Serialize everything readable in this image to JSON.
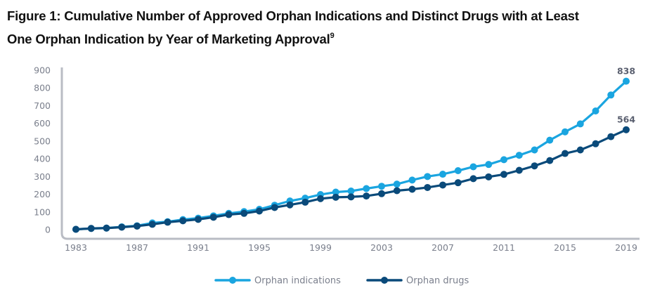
{
  "figure": {
    "title_line1": "Figure 1: Cumulative Number of Approved Orphan Indications and Distinct Drugs with at Least",
    "title_line2": "One Orphan Indication by Year of Marketing Approval",
    "footnote_marker": "9"
  },
  "chart_data": {
    "type": "line",
    "title": "Cumulative Number of Approved Orphan Indications and Distinct Drugs with at Least One Orphan Indication by Year of Marketing Approval",
    "xlabel": "",
    "ylabel": "",
    "x": [
      1983,
      1984,
      1985,
      1986,
      1987,
      1988,
      1989,
      1990,
      1991,
      1992,
      1993,
      1994,
      1995,
      1996,
      1997,
      1998,
      1999,
      2000,
      2001,
      2002,
      2003,
      2004,
      2005,
      2006,
      2007,
      2008,
      2009,
      2010,
      2011,
      2012,
      2013,
      2014,
      2015,
      2016,
      2017,
      2018,
      2019
    ],
    "xlim": [
      1983,
      2019
    ],
    "ylim": [
      0,
      900
    ],
    "x_ticks": [
      "1983",
      "1987",
      "1991",
      "1995",
      "1999",
      "2003",
      "2007",
      "2011",
      "2015",
      "2019"
    ],
    "y_ticks": [
      "0",
      "100",
      "200",
      "300",
      "400",
      "500",
      "600",
      "700",
      "800",
      "900"
    ],
    "grid": false,
    "legend_position": "bottom",
    "series": [
      {
        "name": "Orphan indications",
        "color": "#1aa5e0",
        "values": [
          2,
          7,
          9,
          16,
          22,
          38,
          45,
          57,
          65,
          78,
          92,
          102,
          115,
          138,
          162,
          178,
          198,
          212,
          218,
          232,
          245,
          257,
          280,
          300,
          313,
          333,
          355,
          368,
          395,
          420,
          450,
          505,
          552,
          597,
          670,
          760,
          838
        ],
        "end_label": "838"
      },
      {
        "name": "Orphan drugs",
        "color": "#0a4a7a",
        "values": [
          2,
          7,
          9,
          14,
          20,
          30,
          42,
          50,
          58,
          70,
          85,
          92,
          105,
          125,
          140,
          155,
          175,
          183,
          185,
          190,
          203,
          220,
          228,
          238,
          252,
          265,
          288,
          298,
          312,
          335,
          360,
          390,
          430,
          450,
          485,
          525,
          564
        ],
        "end_label": "564"
      }
    ]
  }
}
